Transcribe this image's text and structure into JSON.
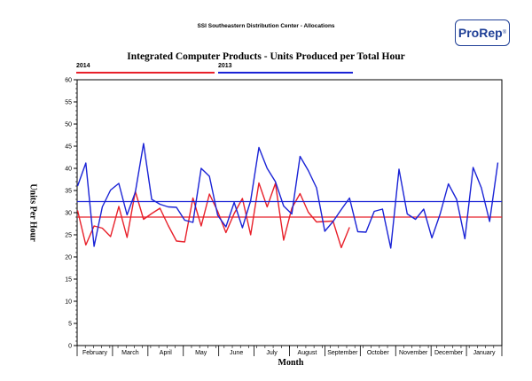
{
  "header": {
    "report_title": "SSI Southeastern Distribution Center - Allocations",
    "logo_text": "ProRep",
    "logo_mark": "®"
  },
  "chart_data": {
    "type": "line",
    "title": "Integrated Computer Products - Units Produced per Total Hour",
    "xlabel": "Month",
    "ylabel": "Units Per Hour",
    "ylim": [
      0,
      60
    ],
    "y_ticks": [
      0,
      5,
      10,
      15,
      20,
      25,
      30,
      35,
      40,
      45,
      50,
      55,
      60
    ],
    "months": [
      "February",
      "March",
      "April",
      "May",
      "June",
      "July",
      "August",
      "September",
      "October",
      "November",
      "December",
      "January"
    ],
    "grid": false,
    "legend_position": "top-left",
    "series": [
      {
        "name": "2014",
        "color": "#e8202a",
        "average": 29,
        "values": [
          30.5,
          22.7,
          27,
          26.5,
          24.6,
          31.4,
          24.4,
          34.8,
          28.5,
          29.8,
          31,
          27.1,
          23.6,
          23.4,
          33.3,
          27,
          34.2,
          30.3,
          25.5,
          29.8,
          33.2,
          25,
          36.7,
          31.3,
          36.6,
          23.8,
          31,
          34.3,
          30.1,
          27.9,
          28,
          28.1,
          22.1,
          26.7
        ]
      },
      {
        "name": "2013",
        "color": "#1a23d6",
        "average": 32.5,
        "values": [
          36,
          41.2,
          22.4,
          31.3,
          35.1,
          36.6,
          29.5,
          34.6,
          45.6,
          33,
          31.9,
          31.3,
          31.2,
          28.3,
          27.8,
          40,
          38.2,
          29.4,
          26.8,
          32.3,
          26.6,
          32.7,
          44.7,
          40,
          37,
          31.5,
          29.7,
          42.7,
          39.5,
          35.6,
          25.8,
          28,
          30.7,
          33.3,
          25.7,
          25.6,
          30.3,
          30.8,
          22,
          39.8,
          29.7,
          28.5,
          30.8,
          24.3,
          29.7,
          36.5,
          33,
          24.1,
          40.2,
          35.6,
          28,
          41.3
        ]
      }
    ]
  }
}
